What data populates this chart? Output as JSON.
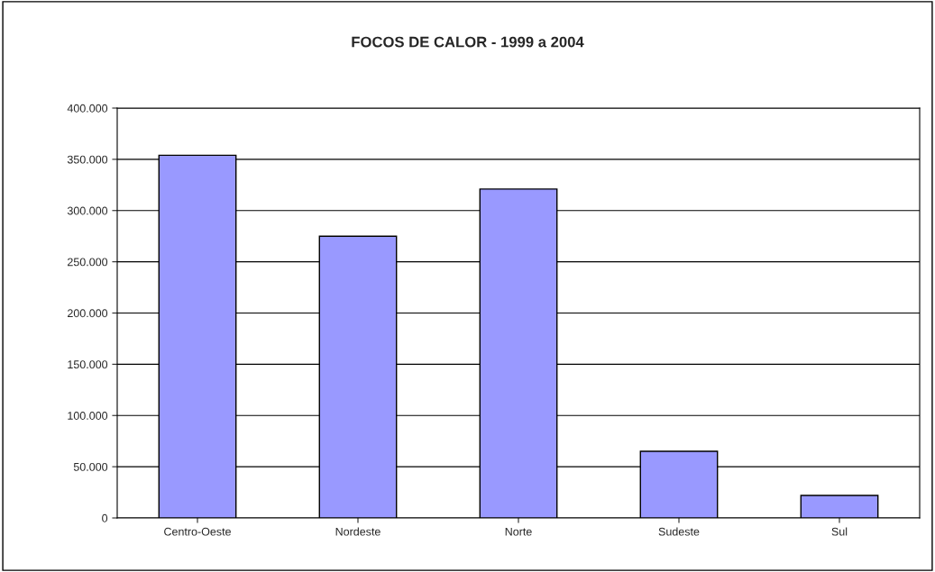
{
  "chart_data": {
    "type": "bar",
    "title": "FOCOS DE CALOR - 1999 a 2004",
    "categories": [
      "Centro-Oeste",
      "Nordeste",
      "Norte",
      "Sudeste",
      "Sul"
    ],
    "values": [
      354000,
      275000,
      321000,
      65000,
      22000
    ],
    "color": "#9999ff",
    "ylim": [
      0,
      400000
    ],
    "yticks": [
      {
        "value": 0,
        "label": "0"
      },
      {
        "value": 50000,
        "label": "50.000"
      },
      {
        "value": 100000,
        "label": "100.000"
      },
      {
        "value": 150000,
        "label": "150.000"
      },
      {
        "value": 200000,
        "label": "200.000"
      },
      {
        "value": 250000,
        "label": "250.000"
      },
      {
        "value": 300000,
        "label": "300.000"
      },
      {
        "value": 350000,
        "label": "350.000"
      },
      {
        "value": 400000,
        "label": "400.000"
      }
    ],
    "grid": "y"
  }
}
